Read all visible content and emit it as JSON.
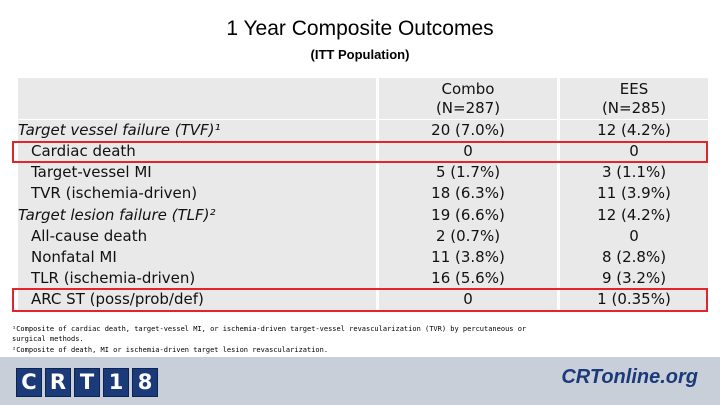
{
  "title": "1 Year Composite Outcomes",
  "subtitle": "(ITT Population)",
  "columns": {
    "combo": [
      "Combo",
      "(N=287)"
    ],
    "ees": [
      "EES",
      "(N=285)"
    ]
  },
  "rows": [
    {
      "label": "Target vessel failure (TVF)¹",
      "combo": "20 (7.0%)",
      "ees": "12 (4.2%)"
    },
    {
      "label": "Cardiac death",
      "combo": "0",
      "ees": "0"
    },
    {
      "label": "Target-vessel MI",
      "combo": "5 (1.7%)",
      "ees": "3 (1.1%)"
    },
    {
      "label": "TVR (ischemia-driven)",
      "combo": "18 (6.3%)",
      "ees": "11 (3.9%)"
    },
    {
      "label": "Target lesion failure (TLF)²",
      "combo": "19 (6.6%)",
      "ees": "12 (4.2%)"
    },
    {
      "label": "All-cause death",
      "combo": "2 (0.7%)",
      "ees": "0"
    },
    {
      "label": "Nonfatal MI",
      "combo": "11 (3.8%)",
      "ees": "8 (2.8%)"
    },
    {
      "label": "TLR (ischemia-driven)",
      "combo": "16 (5.6%)",
      "ees": "9 (3.2%)"
    },
    {
      "label": "ARC ST (poss/prob/def)",
      "combo": "0",
      "ees": "1 (0.35%)"
    }
  ],
  "footnotes": [
    "¹Composite of cardiac death, target-vessel MI, or ischemia-driven target-vessel revascularization (TVR) by percutaneous or",
    "surgical methods.",
    "²Composite of death, MI or ischemia-driven target lesion revascularization."
  ],
  "footer": {
    "logo_left": [
      "C",
      "R",
      "T",
      "1",
      "8"
    ],
    "logo_right": "CRTonline.org"
  },
  "colors": {
    "highlight": "#e3242b",
    "band": "#e9e9e9",
    "brand": "#1b3a7a"
  }
}
